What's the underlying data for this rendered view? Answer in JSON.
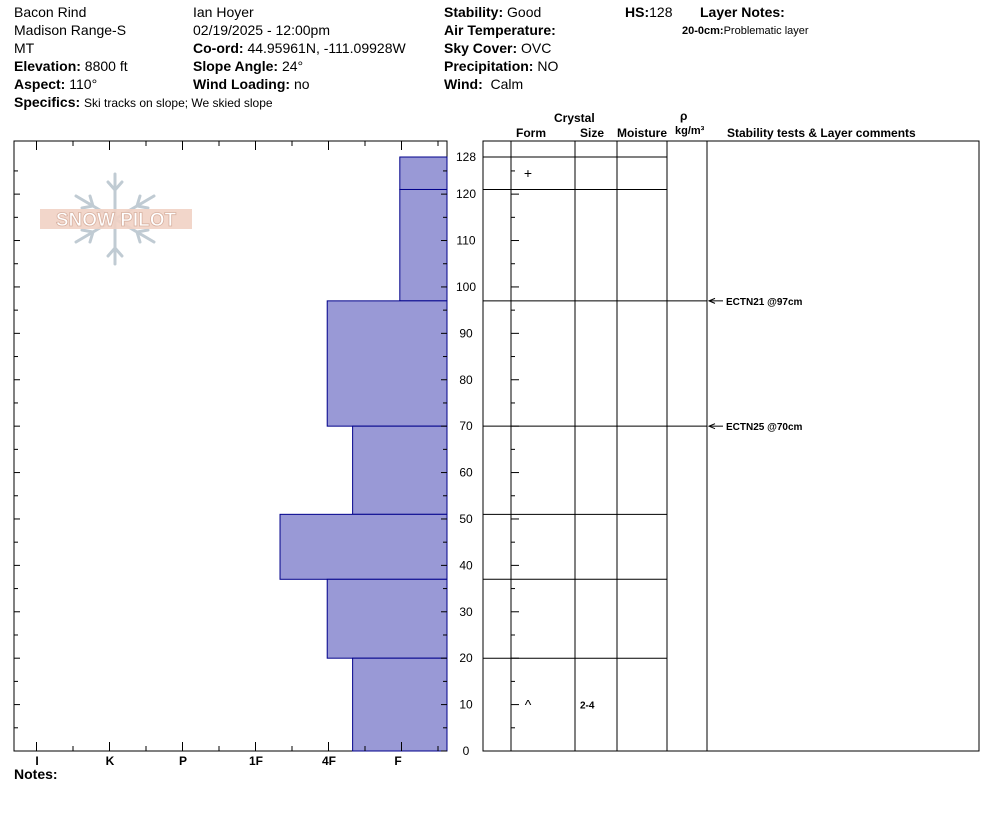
{
  "header": {
    "location": "Bacon Rind",
    "range": "Madison Range-S",
    "state": "MT",
    "elevation_label": "Elevation:",
    "elevation": "8800 ft",
    "aspect_label": "Aspect:",
    "aspect": "110°",
    "observer": "Ian Hoyer",
    "datetime": "02/19/2025 - 12:00pm",
    "coord_label": "Co-ord:",
    "coord": "44.95961N, -111.09928W",
    "slope_label": "Slope Angle:",
    "slope": "24°",
    "wind_loading_label": "Wind Loading:",
    "wind_loading": "no",
    "stability_label": "Stability:",
    "stability": "Good",
    "air_temp_label": "Air Temperature:",
    "sky_label": "Sky Cover:",
    "sky": "OVC",
    "precip_label": "Precipitation:",
    "precip": "NO",
    "wind_label": "Wind:",
    "wind": "Calm",
    "hs_label": "HS:",
    "hs": "128",
    "layer_notes_label": "Layer Notes:",
    "layer_note_depth": "20-0cm:",
    "layer_note_text": "Problematic layer",
    "specifics_label": "Specifics:",
    "specifics": "Ski tracks on slope; We skied slope"
  },
  "logo_text": "SNOW PILOT",
  "columns": {
    "crystal": "Crystal",
    "form": "Form",
    "size": "Size",
    "moisture": "Moisture",
    "rho": "ρ",
    "density_unit": "kg/m³",
    "comments": "Stability tests & Layer comments"
  },
  "notes_label": "Notes:",
  "colors": {
    "layer_fill": "#9999d6",
    "layer_stroke": "#00008b"
  },
  "chart_data": {
    "type": "bar",
    "orientation": "horizontal",
    "title": "",
    "xlabel": "",
    "ylabel": "",
    "hardness_categories": [
      "I",
      "K",
      "P",
      "1F",
      "4F",
      "F"
    ],
    "hardness_axis_note": "hardness increases to the left; F = fist at right edge",
    "ylim": [
      0,
      128
    ],
    "y_ticks": [
      0,
      10,
      20,
      30,
      40,
      50,
      60,
      70,
      80,
      90,
      100,
      110,
      120,
      128
    ],
    "layers": [
      {
        "top": 128,
        "bottom": 121,
        "hardness": "F",
        "hardness_value": 0.65
      },
      {
        "top": 121,
        "bottom": 97,
        "hardness": "F",
        "hardness_value": 0.65
      },
      {
        "top": 97,
        "bottom": 70,
        "hardness": "4F",
        "hardness_value": 1.65
      },
      {
        "top": 70,
        "bottom": 51,
        "hardness": "4F-",
        "hardness_value": 1.3
      },
      {
        "top": 51,
        "bottom": 37,
        "hardness": "1F-",
        "hardness_value": 2.3
      },
      {
        "top": 37,
        "bottom": 20,
        "hardness": "4F",
        "hardness_value": 1.65
      },
      {
        "top": 20,
        "bottom": 0,
        "hardness": "4F-",
        "hardness_value": 1.3
      }
    ],
    "grain_forms": [
      {
        "depth": 124.5,
        "symbol": "+",
        "size": ""
      },
      {
        "depth": 10,
        "symbol": "^",
        "size": "2-4"
      }
    ],
    "stability_tests": [
      {
        "depth": 97,
        "label": "ECTN21 @97cm"
      },
      {
        "depth": 70,
        "label": "ECTN25 @70cm"
      }
    ]
  }
}
